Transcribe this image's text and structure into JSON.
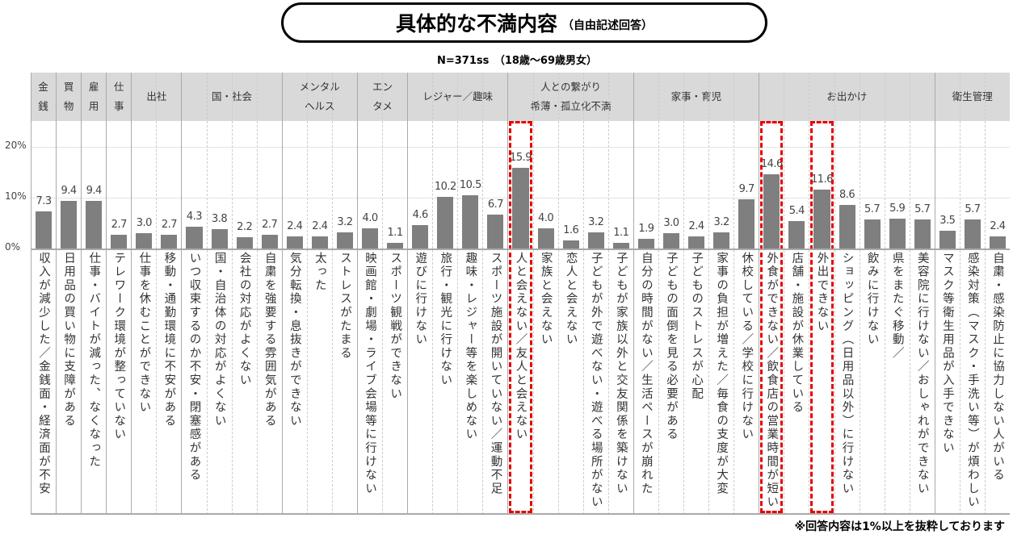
{
  "title": "具体的な不満内容",
  "title_note": "（自由記述回答）",
  "subtitle": "N=371ss　（18歳〜69歳男女）",
  "footnote": "※回答内容は1%以上を抜粋しております",
  "colors": {
    "bar": "#7f7f7f",
    "highlight": "#e60000",
    "header_bg": "#d9d9d9"
  },
  "chart_data": {
    "type": "bar",
    "ylim": [
      0,
      20
    ],
    "yticks": [
      "0%",
      "10%",
      "20%"
    ],
    "grid": true,
    "groups": [
      {
        "label": "金\n銭",
        "count": 1
      },
      {
        "label": "買\n物",
        "count": 1
      },
      {
        "label": "雇\n用",
        "count": 1
      },
      {
        "label": "仕\n事",
        "count": 1
      },
      {
        "label": "出社",
        "count": 2
      },
      {
        "label": "国・社会",
        "count": 4
      },
      {
        "label": "メンタル\nヘルス",
        "count": 3
      },
      {
        "label": "エン\nタメ",
        "count": 2
      },
      {
        "label": "レジャー／趣味",
        "count": 4
      },
      {
        "label": "人との繋がり\n希薄・孤立化不満",
        "count": 5
      },
      {
        "label": "家事・育児",
        "count": 5
      },
      {
        "label": "お出かけ",
        "count": 7
      },
      {
        "label": "衛生管理",
        "count": 3
      }
    ],
    "categories": [
      "収入が減少した／金銭面・経済面が不安",
      "日用品の買い物に支障がある",
      "仕事・バイトが減った、なくなった",
      "テレワーク環境が整っていない",
      "仕事を休むことができない",
      "移動・通勤環境に不安がある",
      "いつ収束するのか不安・閉塞感がある",
      "国・自治体の対応がよくない",
      "会社の対応がよくない",
      "自粛を強要する雰囲気がある",
      "気分転換・息抜きができない",
      "太った",
      "ストレスがたまる",
      "映画館・劇場・ライブ会場等に行けない",
      "スポーツ観戦ができない",
      "遊びに行けない",
      "旅行・観光に行けない",
      "趣味・レジャー等を楽しめない",
      "スポーツ施設が開いていない／運動不足",
      "人と会えない／友人と会えない",
      "家族と会えない",
      "恋人と会えない",
      "子どもが外で遊べない・遊べる場所がない",
      "子どもが家族以外と交友関係を築けない",
      "自分の時間がない／生活ペースが崩れた",
      "子どもの面倒を見る必要がある",
      "子どものストレスが心配",
      "家事の負担が増えた／毎食の支度が大変",
      "休校している／学校に行けない",
      "外食ができない／飲食店の営業時間が短い",
      "店舗・施設が休業している",
      "外出できない",
      "ショッピング（日用品以外）に行けない",
      "飲みに行けない",
      "県をまたぐ移動／",
      "美容院に行けない／おしゃれができない",
      "マスク等衛生用品が入手できない",
      "感染対策（マスク・手洗い等）が煩わしい",
      "自粛・感染防止に協力しない人がいる"
    ],
    "values": [
      "7.3",
      "9.4",
      "9.4",
      "2.7",
      "3.0",
      "2.7",
      "4.3",
      "3.8",
      "2.2",
      "2.7",
      "2.4",
      "2.4",
      "3.2",
      "4.0",
      "1.1",
      "4.6",
      "10.2",
      "10.5",
      "6.7",
      "15.9",
      "4.0",
      "1.6",
      "3.2",
      "1.1",
      "1.9",
      "3.0",
      "2.4",
      "3.2",
      "9.7",
      "14.6",
      "5.4",
      "11.6",
      "8.6",
      "5.7",
      "5.9",
      "5.7",
      "3.5",
      "5.7",
      "2.4"
    ],
    "highlighted": [
      "人と会えない／友人と会えない",
      "外食ができない／飲食店の営業時間が短い",
      "外出できない"
    ]
  }
}
